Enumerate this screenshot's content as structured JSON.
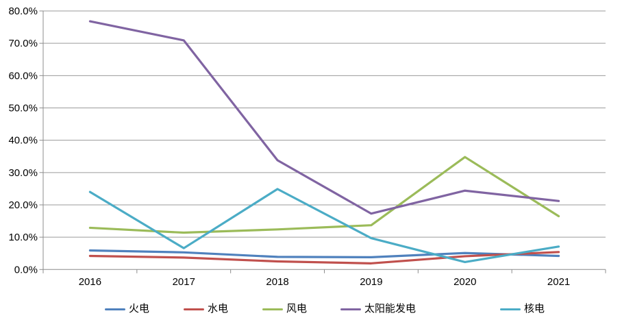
{
  "chart_data": {
    "type": "line",
    "title": "",
    "xlabel": "",
    "ylabel": "",
    "categories": [
      "2016",
      "2017",
      "2018",
      "2019",
      "2020",
      "2021"
    ],
    "y_axis": {
      "min": 0,
      "max": 80,
      "step": 10,
      "unit": "%",
      "tick_labels": [
        "0.0%",
        "10.0%",
        "20.0%",
        "30.0%",
        "40.0%",
        "50.0%",
        "60.0%",
        "70.0%",
        "80.0%"
      ]
    },
    "series": [
      {
        "name": "火电",
        "color": "#4F81BD",
        "values": [
          5.9,
          5.3,
          3.9,
          3.8,
          5.1,
          4.2
        ]
      },
      {
        "name": "水电",
        "color": "#C0504D",
        "values": [
          4.2,
          3.7,
          2.5,
          1.9,
          4.1,
          5.4
        ]
      },
      {
        "name": "风电",
        "color": "#9BBB59",
        "values": [
          12.9,
          11.4,
          12.4,
          13.7,
          34.8,
          16.5
        ]
      },
      {
        "name": "太阳能发电",
        "color": "#8064A2",
        "values": [
          76.8,
          70.9,
          33.8,
          17.3,
          24.4,
          21.2
        ]
      },
      {
        "name": "核电",
        "color": "#4BACC6",
        "values": [
          24.0,
          6.6,
          24.9,
          9.7,
          2.3,
          7.1
        ]
      }
    ],
    "legend": {
      "position": "bottom"
    },
    "grid": true,
    "styles": {
      "grid_color": "#9a9a9a",
      "axis_color": "#8c8c8c",
      "text_color": "#000000",
      "background": "#ffffff",
      "line_width": 3.2
    }
  }
}
